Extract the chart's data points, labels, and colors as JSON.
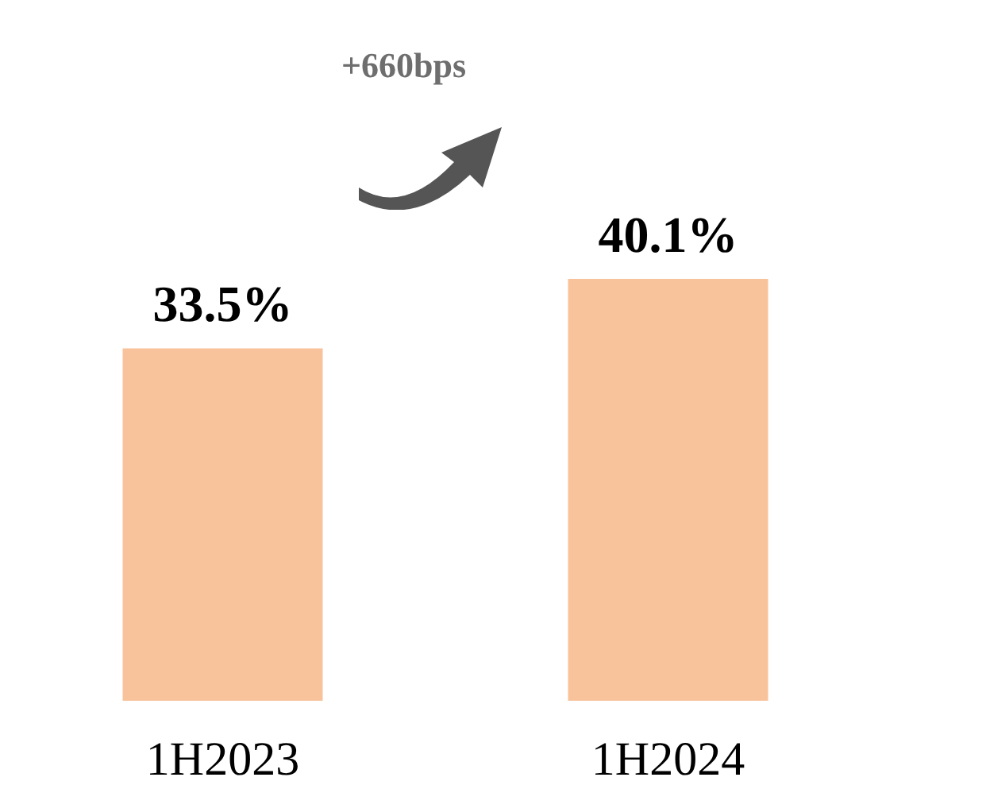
{
  "chart_data": {
    "type": "bar",
    "categories": [
      "1H2023",
      "1H2024"
    ],
    "values": [
      33.5,
      40.1
    ],
    "color": "#f8c39a",
    "value_labels": [
      "33.5%",
      "40.1%"
    ],
    "annotations": [
      "+660bps"
    ]
  }
}
